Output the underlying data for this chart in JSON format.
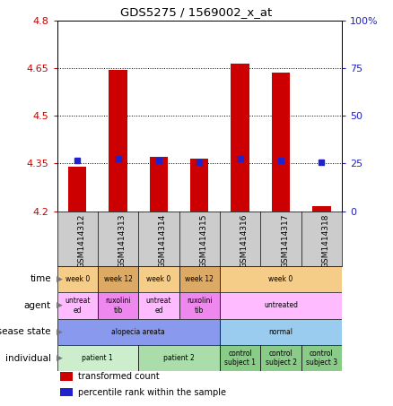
{
  "title": "GDS5275 / 1569002_x_at",
  "samples": [
    "GSM1414312",
    "GSM1414313",
    "GSM1414314",
    "GSM1414315",
    "GSM1414316",
    "GSM1414317",
    "GSM1414318"
  ],
  "bar_values": [
    4.34,
    4.645,
    4.37,
    4.365,
    4.665,
    4.635,
    4.215
  ],
  "dot_values": [
    4.36,
    4.365,
    4.36,
    4.355,
    4.365,
    4.36,
    4.355
  ],
  "ylim": [
    4.2,
    4.8
  ],
  "yticks_left": [
    4.2,
    4.35,
    4.5,
    4.65,
    4.8
  ],
  "yticks_right_vals": [
    0,
    25,
    50,
    75,
    100
  ],
  "yticks_right_labels": [
    "0",
    "25",
    "50",
    "75",
    "100%"
  ],
  "dotted_lines": [
    4.35,
    4.5,
    4.65
  ],
  "bar_color": "#cc0000",
  "dot_color": "#2222cc",
  "bar_bottom": 4.2,
  "metadata_rows": [
    {
      "label": "individual",
      "groups": [
        {
          "text": "patient 1",
          "span": [
            0,
            2
          ],
          "color": "#cceecc"
        },
        {
          "text": "patient 2",
          "span": [
            2,
            4
          ],
          "color": "#aaddaa"
        },
        {
          "text": "control\nsubject 1",
          "span": [
            4,
            5
          ],
          "color": "#88cc88"
        },
        {
          "text": "control\nsubject 2",
          "span": [
            5,
            6
          ],
          "color": "#88cc88"
        },
        {
          "text": "control\nsubject 3",
          "span": [
            6,
            7
          ],
          "color": "#88cc88"
        }
      ]
    },
    {
      "label": "disease state",
      "groups": [
        {
          "text": "alopecia areata",
          "span": [
            0,
            4
          ],
          "color": "#8899ee"
        },
        {
          "text": "normal",
          "span": [
            4,
            7
          ],
          "color": "#99ccee"
        }
      ]
    },
    {
      "label": "agent",
      "groups": [
        {
          "text": "untreat\ned",
          "span": [
            0,
            1
          ],
          "color": "#ffbbff"
        },
        {
          "text": "ruxolini\ntib",
          "span": [
            1,
            2
          ],
          "color": "#ee88ee"
        },
        {
          "text": "untreat\ned",
          "span": [
            2,
            3
          ],
          "color": "#ffbbff"
        },
        {
          "text": "ruxolini\ntib",
          "span": [
            3,
            4
          ],
          "color": "#ee88ee"
        },
        {
          "text": "untreated",
          "span": [
            4,
            7
          ],
          "color": "#ffbbff"
        }
      ]
    },
    {
      "label": "time",
      "groups": [
        {
          "text": "week 0",
          "span": [
            0,
            1
          ],
          "color": "#f5cc88"
        },
        {
          "text": "week 12",
          "span": [
            1,
            2
          ],
          "color": "#ddaa66"
        },
        {
          "text": "week 0",
          "span": [
            2,
            3
          ],
          "color": "#f5cc88"
        },
        {
          "text": "week 12",
          "span": [
            3,
            4
          ],
          "color": "#ddaa66"
        },
        {
          "text": "week 0",
          "span": [
            4,
            7
          ],
          "color": "#f5cc88"
        }
      ]
    }
  ],
  "legend_items": [
    {
      "label": "transformed count",
      "color": "#cc0000"
    },
    {
      "label": "percentile rank within the sample",
      "color": "#2222cc"
    }
  ],
  "left_label_color": "#cc0000",
  "right_label_color": "#2222bb",
  "sample_bg_color": "#cccccc",
  "spine_color": "#000000"
}
